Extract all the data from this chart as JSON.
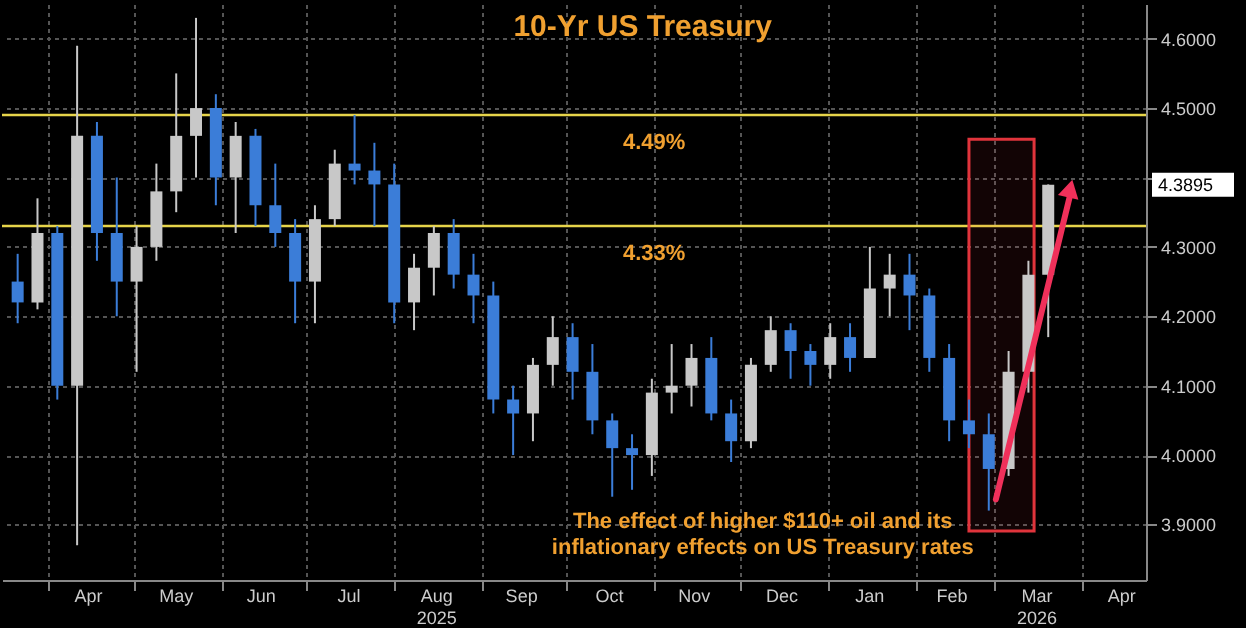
{
  "chart_data": {
    "type": "candlestick",
    "title": "10-Yr US Treasury",
    "x": [
      "2025-03-21",
      "2025-03-28",
      "2025-04-04",
      "2025-04-11",
      "2025-04-18",
      "2025-04-25",
      "2025-05-02",
      "2025-05-09",
      "2025-05-16",
      "2025-05-23",
      "2025-05-30",
      "2025-06-06",
      "2025-06-13",
      "2025-06-20",
      "2025-06-27",
      "2025-07-04",
      "2025-07-11",
      "2025-07-18",
      "2025-07-25",
      "2025-08-01",
      "2025-08-08",
      "2025-08-15",
      "2025-08-22",
      "2025-08-29",
      "2025-09-05",
      "2025-09-12",
      "2025-09-19",
      "2025-09-26",
      "2025-10-03",
      "2025-10-10",
      "2025-10-17",
      "2025-10-24",
      "2025-10-31",
      "2025-11-07",
      "2025-11-14",
      "2025-11-21",
      "2025-11-28",
      "2025-12-05",
      "2025-12-12",
      "2025-12-19",
      "2025-12-26",
      "2026-01-02",
      "2026-01-09",
      "2026-01-16",
      "2026-01-23",
      "2026-01-30",
      "2026-02-06",
      "2026-02-13",
      "2026-02-20",
      "2026-02-27",
      "2026-03-06",
      "2026-03-13",
      "2026-03-20"
    ],
    "ohlc": [
      [
        4.25,
        4.29,
        4.19,
        4.22
      ],
      [
        4.22,
        4.37,
        4.21,
        4.32
      ],
      [
        4.32,
        4.33,
        4.08,
        4.1
      ],
      [
        4.1,
        4.59,
        3.87,
        4.46
      ],
      [
        4.46,
        4.48,
        4.28,
        4.32
      ],
      [
        4.32,
        4.4,
        4.2,
        4.25
      ],
      [
        4.25,
        4.33,
        4.12,
        4.3
      ],
      [
        4.3,
        4.42,
        4.28,
        4.38
      ],
      [
        4.38,
        4.55,
        4.35,
        4.46
      ],
      [
        4.46,
        4.63,
        4.4,
        4.5
      ],
      [
        4.5,
        4.52,
        4.36,
        4.4
      ],
      [
        4.4,
        4.48,
        4.32,
        4.46
      ],
      [
        4.46,
        4.47,
        4.33,
        4.36
      ],
      [
        4.36,
        4.42,
        4.3,
        4.32
      ],
      [
        4.32,
        4.34,
        4.19,
        4.25
      ],
      [
        4.25,
        4.36,
        4.19,
        4.34
      ],
      [
        4.34,
        4.44,
        4.33,
        4.42
      ],
      [
        4.42,
        4.49,
        4.39,
        4.41
      ],
      [
        4.41,
        4.45,
        4.33,
        4.39
      ],
      [
        4.39,
        4.42,
        4.19,
        4.22
      ],
      [
        4.22,
        4.29,
        4.18,
        4.27
      ],
      [
        4.27,
        4.33,
        4.23,
        4.32
      ],
      [
        4.32,
        4.34,
        4.24,
        4.26
      ],
      [
        4.26,
        4.29,
        4.19,
        4.23
      ],
      [
        4.23,
        4.25,
        4.06,
        4.08
      ],
      [
        4.08,
        4.1,
        4.0,
        4.06
      ],
      [
        4.06,
        4.14,
        4.02,
        4.13
      ],
      [
        4.13,
        4.2,
        4.1,
        4.17
      ],
      [
        4.17,
        4.19,
        4.08,
        4.12
      ],
      [
        4.12,
        4.16,
        4.03,
        4.05
      ],
      [
        4.05,
        4.06,
        3.94,
        4.01
      ],
      [
        4.01,
        4.03,
        3.95,
        4.0
      ],
      [
        4.0,
        4.11,
        3.97,
        4.09
      ],
      [
        4.09,
        4.16,
        4.06,
        4.1
      ],
      [
        4.1,
        4.16,
        4.07,
        4.14
      ],
      [
        4.14,
        4.17,
        4.05,
        4.06
      ],
      [
        4.06,
        4.08,
        3.99,
        4.02
      ],
      [
        4.02,
        4.14,
        4.01,
        4.13
      ],
      [
        4.13,
        4.2,
        4.12,
        4.18
      ],
      [
        4.18,
        4.19,
        4.11,
        4.15
      ],
      [
        4.15,
        4.16,
        4.1,
        4.13
      ],
      [
        4.13,
        4.19,
        4.11,
        4.17
      ],
      [
        4.17,
        4.19,
        4.12,
        4.14
      ],
      [
        4.14,
        4.3,
        4.14,
        4.24
      ],
      [
        4.24,
        4.29,
        4.2,
        4.26
      ],
      [
        4.26,
        4.29,
        4.18,
        4.23
      ],
      [
        4.23,
        4.24,
        4.12,
        4.14
      ],
      [
        4.14,
        4.16,
        4.02,
        4.05
      ],
      [
        4.05,
        4.08,
        4.01,
        4.03
      ],
      [
        4.03,
        4.06,
        3.92,
        3.98
      ],
      [
        3.98,
        4.15,
        3.97,
        4.12
      ],
      [
        4.12,
        4.28,
        4.09,
        4.26
      ],
      [
        4.26,
        4.39,
        4.17,
        4.3895
      ]
    ],
    "colors": [
      "#3b7dd8",
      "#c8c8c8",
      "#3b7dd8",
      "#c8c8c8",
      "#3b7dd8",
      "#3b7dd8",
      "#c8c8c8",
      "#c8c8c8",
      "#c8c8c8",
      "#c8c8c8",
      "#3b7dd8",
      "#c8c8c8",
      "#3b7dd8",
      "#3b7dd8",
      "#3b7dd8",
      "#c8c8c8",
      "#c8c8c8",
      "#3b7dd8",
      "#3b7dd8",
      "#3b7dd8",
      "#c8c8c8",
      "#c8c8c8",
      "#3b7dd8",
      "#3b7dd8",
      "#3b7dd8",
      "#3b7dd8",
      "#c8c8c8",
      "#c8c8c8",
      "#3b7dd8",
      "#3b7dd8",
      "#3b7dd8",
      "#3b7dd8",
      "#c8c8c8",
      "#c8c8c8",
      "#c8c8c8",
      "#3b7dd8",
      "#3b7dd8",
      "#c8c8c8",
      "#c8c8c8",
      "#3b7dd8",
      "#3b7dd8",
      "#c8c8c8",
      "#3b7dd8",
      "#c8c8c8",
      "#c8c8c8",
      "#3b7dd8",
      "#3b7dd8",
      "#3b7dd8",
      "#3b7dd8",
      "#3b7dd8",
      "#c8c8c8",
      "#c8c8c8",
      "#c8c8c8"
    ],
    "xlim": [
      "2025-03-19",
      "2026-04-20"
    ],
    "xticks": [
      {
        "value": "2025-04-01",
        "label": null
      },
      {
        "value": "2025-04-15",
        "label": "Apr"
      },
      {
        "value": "2025-05-01",
        "label": null
      },
      {
        "value": "2025-05-16",
        "label": "May"
      },
      {
        "value": "2025-06-01",
        "label": null
      },
      {
        "value": "2025-06-15",
        "label": "Jun"
      },
      {
        "value": "2025-07-01",
        "label": null
      },
      {
        "value": "2025-07-16",
        "label": "Jul"
      },
      {
        "value": "2025-08-01",
        "label": null
      },
      {
        "value": "2025-08-16",
        "label": "Aug\n2025"
      },
      {
        "value": "2025-09-01",
        "label": null
      },
      {
        "value": "2025-09-15",
        "label": "Sep"
      },
      {
        "value": "2025-10-01",
        "label": null
      },
      {
        "value": "2025-10-16",
        "label": "Oct"
      },
      {
        "value": "2025-11-01",
        "label": null
      },
      {
        "value": "2025-11-15",
        "label": "Nov"
      },
      {
        "value": "2025-12-01",
        "label": null
      },
      {
        "value": "2025-12-16",
        "label": "Dec"
      },
      {
        "value": "2026-01-01",
        "label": null
      },
      {
        "value": "2026-01-16",
        "label": "Jan"
      },
      {
        "value": "2026-02-01",
        "label": null
      },
      {
        "value": "2026-02-14",
        "label": "Feb"
      },
      {
        "value": "2026-03-01",
        "label": null
      },
      {
        "value": "2026-03-16",
        "label": "Mar\n2026"
      },
      {
        "value": "2026-04-01",
        "label": null
      },
      {
        "value": "2026-04-15",
        "label": "Apr"
      }
    ],
    "ylim": [
      3.82,
      4.65
    ],
    "yticks": [
      {
        "value": 3.9,
        "label": "3.9000"
      },
      {
        "value": 4.0,
        "label": "4.0000"
      },
      {
        "value": 4.1,
        "label": "4.1000"
      },
      {
        "value": 4.2,
        "label": "4.2000"
      },
      {
        "value": 4.3,
        "label": "4.3000"
      },
      {
        "value": 4.4,
        "label": null
      },
      {
        "value": 4.5,
        "label": "4.5000"
      },
      {
        "value": 4.6,
        "label": "4.6000"
      }
    ],
    "grid": true,
    "ref_lines": [
      {
        "axis": "y",
        "value": 4.49,
        "label": "4.49%",
        "color": "#e6d44a"
      },
      {
        "axis": "y",
        "value": 4.33,
        "label": "4.33%",
        "color": "#e6d44a"
      }
    ],
    "bands": [
      {
        "axis": "x",
        "from": "2026-02-20",
        "to": "2026-03-15",
        "color": "#e0343c"
      }
    ],
    "annotations": [
      "The effect of higher $110+ oil and its\ninflationary effects on US Treasury rates",
      "4.3895"
    ]
  }
}
